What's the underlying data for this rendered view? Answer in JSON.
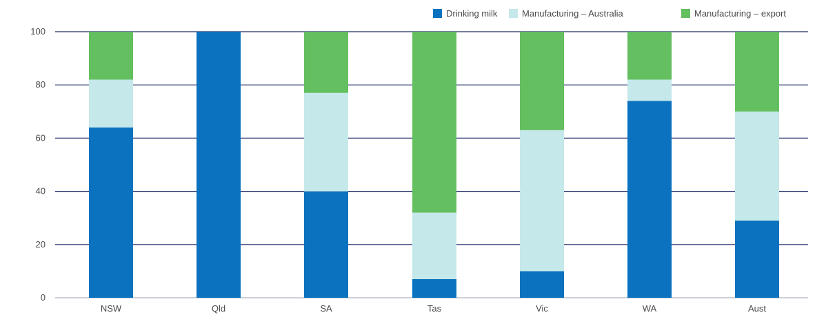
{
  "chart_data": {
    "type": "bar",
    "stacked": true,
    "categories": [
      "NSW",
      "Qld",
      "SA",
      "Tas",
      "Vic",
      "WA",
      "Aust"
    ],
    "series": [
      {
        "name": "Drinking milk",
        "color": "#0a72bf",
        "values": [
          64,
          100,
          40,
          7,
          10,
          74,
          29
        ]
      },
      {
        "name": "Manufacturing – Australia",
        "color": "#c5e8ea",
        "values": [
          18,
          0,
          37,
          25,
          53,
          8,
          41
        ]
      },
      {
        "name": "Manufacturing – export",
        "color": "#64bf60",
        "values": [
          18,
          0,
          23,
          68,
          37,
          18,
          30
        ]
      }
    ],
    "ylim": [
      0,
      100
    ],
    "yticks": [
      0,
      20,
      40,
      60,
      80,
      100
    ],
    "ylabel": "",
    "xlabel": "",
    "title": "",
    "grid": true,
    "legend": "top-right",
    "grid_color": "#1f2d6b"
  }
}
